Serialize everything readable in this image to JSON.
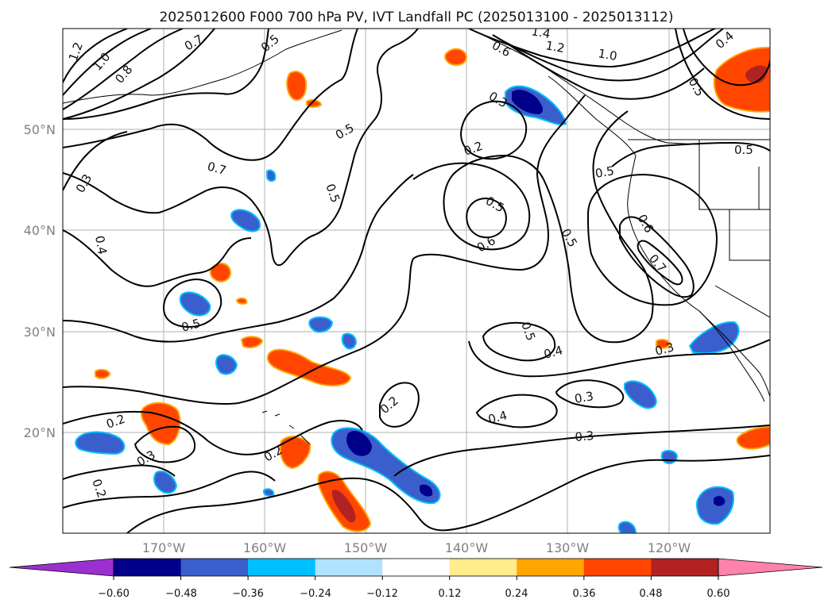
{
  "map": {
    "title": "2025012600 F000 700 hPa PV, IVT Landfall PC (2025013100 - 2025013112)",
    "lat_labels": [
      "50°N",
      "40°N",
      "30°N",
      "20°N"
    ],
    "lon_labels": [
      "170°W",
      "160°W",
      "150°W",
      "140°W",
      "130°W",
      "120°W"
    ],
    "extent": {
      "lon_min": -180,
      "lon_max": -110,
      "lat_min": 10,
      "lat_max": 60
    },
    "grid": true,
    "contour_labels": [
      "1.2",
      "1.0",
      "0.8",
      "0.7",
      "0.5",
      "0.7",
      "0.3",
      "0.4",
      "0.5",
      "0.5",
      "0.5",
      "0.3",
      "0.2",
      "0.6",
      "0.5",
      "0.6",
      "0.5",
      "0.5",
      "0.6",
      "0.7",
      "0.5",
      "0.3",
      "0.4",
      "0.3",
      "0.4",
      "0.3",
      "0.2",
      "0.2",
      "0.3",
      "0.2",
      "0.2",
      "1.4",
      "1.2",
      "1.0",
      "0.4",
      "0.5",
      "0.5"
    ]
  },
  "colorbar": {
    "ticks": [
      "−0.60",
      "−0.48",
      "−0.36",
      "−0.24",
      "−0.12",
      "0.12",
      "0.24",
      "0.36",
      "0.48",
      "0.60"
    ],
    "colors": [
      "#9b30d0",
      "#00008b",
      "#3a5fcd",
      "#00bfff",
      "#b0e2ff",
      "#ffffff",
      "#ffec8b",
      "#ffa500",
      "#ff4500",
      "#b22222",
      "#ff82ab"
    ]
  }
}
